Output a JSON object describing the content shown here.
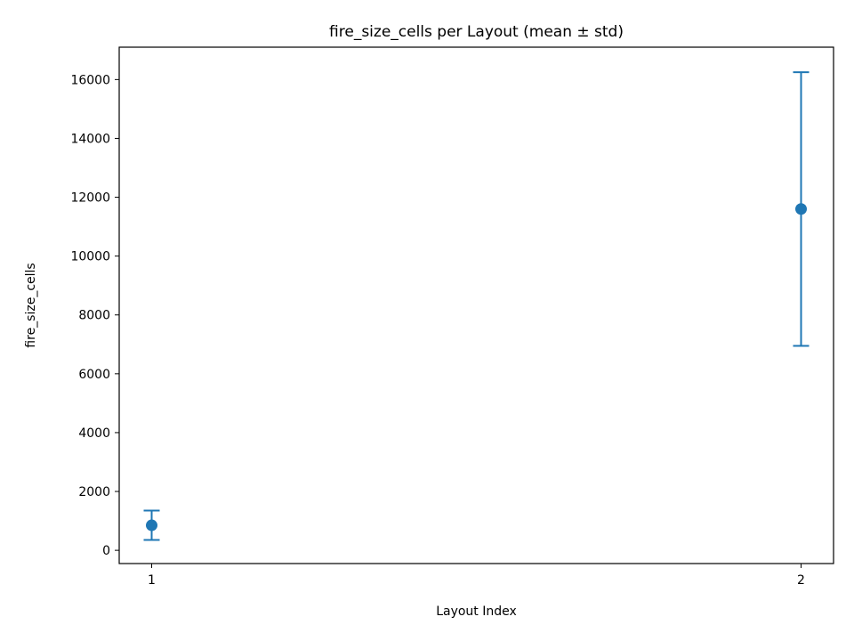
{
  "chart_data": {
    "type": "scatter",
    "title": "fire_size_cells per Layout (mean ± std)",
    "xlabel": "Layout Index",
    "ylabel": "fire_size_cells",
    "x_ticks": [
      "1",
      "2"
    ],
    "y_ticks": [
      "0",
      "2000",
      "4000",
      "6000",
      "8000",
      "10000",
      "12000",
      "14000",
      "16000"
    ],
    "xlim": [
      0.95,
      2.05
    ],
    "ylim": [
      -450,
      17100
    ],
    "grid": false,
    "series": [
      {
        "color": "#1f77b4",
        "points": [
          {
            "x": 1,
            "mean": 850,
            "std": 500
          },
          {
            "x": 2,
            "mean": 11600,
            "std": 4650
          }
        ]
      }
    ]
  }
}
